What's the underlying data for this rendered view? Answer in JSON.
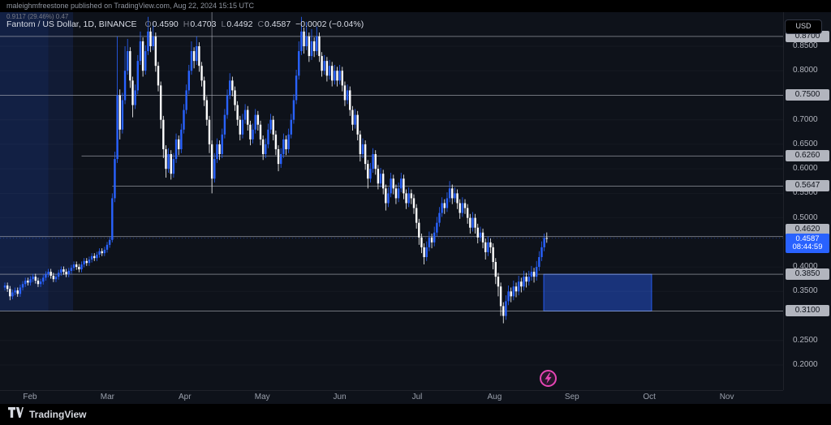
{
  "publish_bar": {
    "text": "maleighmfreestone published on TradingView.com, Aug 22, 2024 15:15 UTC"
  },
  "legend": {
    "symbol": "Fantom / US Dollar, 1D, BINANCE",
    "drawing_label": "0.9117 (29.46%) 0.47",
    "ohlc": {
      "o_label": "O",
      "o": "0.4590",
      "h_label": "H",
      "h": "0.4703",
      "l_label": "L",
      "l": "0.4492",
      "c_label": "C",
      "c": "0.4587",
      "change": "−0.0002 (−0.04%)"
    }
  },
  "price_axis": {
    "currency_button": "USD",
    "ticks": [
      {
        "label": "0.8500",
        "price": 0.85
      },
      {
        "label": "0.8000",
        "price": 0.8
      },
      {
        "label": "0.7000",
        "price": 0.7
      },
      {
        "label": "0.6500",
        "price": 0.65
      },
      {
        "label": "0.6000",
        "price": 0.6
      },
      {
        "label": "0.5500",
        "price": 0.55
      },
      {
        "label": "0.5000",
        "price": 0.5
      },
      {
        "label": "0.4000",
        "price": 0.4
      },
      {
        "label": "0.3500",
        "price": 0.35
      },
      {
        "label": "0.2500",
        "price": 0.25
      },
      {
        "label": "0.2000",
        "price": 0.2
      }
    ],
    "current": {
      "price_label": "0.4587",
      "countdown": "08:44:59",
      "price": 0.4587
    }
  },
  "time_axis": {
    "months": [
      "Feb",
      "Mar",
      "Apr",
      "May",
      "Jun",
      "Jul",
      "Aug",
      "Sep",
      "Oct",
      "Nov"
    ]
  },
  "footer": {
    "brand": "TradingView"
  },
  "colors": {
    "up": "#2962ff",
    "down": "#ffffff",
    "accent_blue": "#2962ff",
    "badge_bg": "#b2b5be",
    "pink": "#e645b4",
    "background": "#0e121a"
  },
  "chart_data": {
    "type": "candlestick",
    "title": "Fantom / US Dollar, 1D, BINANCE",
    "pair": "FTM/USD",
    "interval": "1D",
    "exchange": "BINANCE",
    "visible_price_range": [
      0.17,
      0.925
    ],
    "up_color": "#2962ff",
    "down_color": "#ffffff",
    "level_color": "rgba(178,181,190,0.6)",
    "levels": [
      {
        "label": "0.8700",
        "price": 0.87
      },
      {
        "label": "0.7500",
        "price": 0.75
      },
      {
        "label": "0.6260",
        "price": 0.626,
        "from_index": 30
      },
      {
        "label": "0.5647",
        "price": 0.5647,
        "from_index": 42
      },
      {
        "label": "0.4620",
        "price": 0.462
      },
      {
        "label": "0.3850",
        "price": 0.385
      },
      {
        "label": "0.3100",
        "price": 0.31
      }
    ],
    "vertical_line": {
      "index": 81,
      "price_bottom": 0.5647
    },
    "zones": [
      {
        "name": "left-highlight",
        "from_index": -2,
        "to_index": 26.7,
        "price_top": 0.92,
        "price_bottom": 0.31,
        "fill": "rgba(41,98,255,0.12)"
      },
      {
        "name": "left-highlight-inner",
        "from_index": -2,
        "to_index": 17,
        "price_top": 0.92,
        "price_bottom": 0.31,
        "fill": "rgba(41,98,255,0.08)"
      },
      {
        "name": "demand-zone",
        "from_index": 210.8,
        "to_index": 253,
        "price_top": 0.385,
        "price_bottom": 0.31,
        "fill": "rgba(41,98,255,0.42)",
        "stroke": "rgba(41,98,255,0.9)"
      }
    ],
    "candles": [
      [
        0.358,
        0.368,
        0.352,
        0.362
      ],
      [
        0.362,
        0.368,
        0.349,
        0.355
      ],
      [
        0.355,
        0.361,
        0.332,
        0.34
      ],
      [
        0.34,
        0.354,
        0.334,
        0.348
      ],
      [
        0.348,
        0.358,
        0.342,
        0.352
      ],
      [
        0.352,
        0.358,
        0.339,
        0.345
      ],
      [
        0.345,
        0.364,
        0.339,
        0.358
      ],
      [
        0.358,
        0.371,
        0.352,
        0.365
      ],
      [
        0.365,
        0.378,
        0.359,
        0.372
      ],
      [
        0.372,
        0.378,
        0.362,
        0.368
      ],
      [
        0.368,
        0.381,
        0.362,
        0.375
      ],
      [
        0.375,
        0.386,
        0.369,
        0.38
      ],
      [
        0.38,
        0.386,
        0.366,
        0.372
      ],
      [
        0.372,
        0.378,
        0.359,
        0.365
      ],
      [
        0.365,
        0.376,
        0.359,
        0.37
      ],
      [
        0.37,
        0.384,
        0.364,
        0.378
      ],
      [
        0.378,
        0.391,
        0.372,
        0.385
      ],
      [
        0.385,
        0.396,
        0.379,
        0.39
      ],
      [
        0.39,
        0.396,
        0.376,
        0.382
      ],
      [
        0.382,
        0.388,
        0.369,
        0.375
      ],
      [
        0.375,
        0.386,
        0.369,
        0.38
      ],
      [
        0.38,
        0.394,
        0.374,
        0.388
      ],
      [
        0.388,
        0.401,
        0.382,
        0.395
      ],
      [
        0.395,
        0.401,
        0.384,
        0.39
      ],
      [
        0.39,
        0.396,
        0.379,
        0.385
      ],
      [
        0.385,
        0.398,
        0.379,
        0.392
      ],
      [
        0.392,
        0.404,
        0.386,
        0.398
      ],
      [
        0.398,
        0.411,
        0.392,
        0.405
      ],
      [
        0.405,
        0.411,
        0.394,
        0.4
      ],
      [
        0.4,
        0.406,
        0.389,
        0.395
      ],
      [
        0.395,
        0.411,
        0.389,
        0.405
      ],
      [
        0.405,
        0.418,
        0.399,
        0.412
      ],
      [
        0.412,
        0.418,
        0.402,
        0.408
      ],
      [
        0.408,
        0.421,
        0.402,
        0.415
      ],
      [
        0.415,
        0.428,
        0.409,
        0.422
      ],
      [
        0.422,
        0.428,
        0.412,
        0.418
      ],
      [
        0.418,
        0.431,
        0.412,
        0.425
      ],
      [
        0.425,
        0.438,
        0.419,
        0.432
      ],
      [
        0.432,
        0.438,
        0.422,
        0.428
      ],
      [
        0.428,
        0.441,
        0.422,
        0.435
      ],
      [
        0.435,
        0.451,
        0.429,
        0.445
      ],
      [
        0.445,
        0.461,
        0.439,
        0.455
      ],
      [
        0.455,
        0.55,
        0.45,
        0.54
      ],
      [
        0.54,
        0.635,
        0.532,
        0.62
      ],
      [
        0.62,
        0.87,
        0.612,
        0.75
      ],
      [
        0.75,
        0.762,
        0.66,
        0.68
      ],
      [
        0.68,
        0.755,
        0.672,
        0.74
      ],
      [
        0.74,
        0.85,
        0.732,
        0.8
      ],
      [
        0.8,
        0.865,
        0.792,
        0.84
      ],
      [
        0.84,
        0.848,
        0.765,
        0.78
      ],
      [
        0.78,
        0.788,
        0.705,
        0.73
      ],
      [
        0.73,
        0.772,
        0.722,
        0.76
      ],
      [
        0.76,
        0.832,
        0.752,
        0.82
      ],
      [
        0.82,
        0.88,
        0.812,
        0.86
      ],
      [
        0.86,
        0.868,
        0.788,
        0.8
      ],
      [
        0.8,
        0.852,
        0.792,
        0.84
      ],
      [
        0.84,
        0.91,
        0.832,
        0.88
      ],
      [
        0.88,
        0.888,
        0.838,
        0.85
      ],
      [
        0.85,
        0.9,
        0.842,
        0.87
      ],
      [
        0.87,
        0.878,
        0.798,
        0.81
      ],
      [
        0.81,
        0.818,
        0.758,
        0.77
      ],
      [
        0.77,
        0.778,
        0.682,
        0.7
      ],
      [
        0.7,
        0.708,
        0.622,
        0.64
      ],
      [
        0.64,
        0.648,
        0.582,
        0.6
      ],
      [
        0.6,
        0.642,
        0.592,
        0.63
      ],
      [
        0.63,
        0.638,
        0.578,
        0.59
      ],
      [
        0.59,
        0.632,
        0.582,
        0.62
      ],
      [
        0.62,
        0.672,
        0.612,
        0.66
      ],
      [
        0.66,
        0.668,
        0.628,
        0.64
      ],
      [
        0.64,
        0.692,
        0.632,
        0.68
      ],
      [
        0.68,
        0.732,
        0.672,
        0.72
      ],
      [
        0.72,
        0.772,
        0.712,
        0.76
      ],
      [
        0.76,
        0.812,
        0.752,
        0.8
      ],
      [
        0.8,
        0.86,
        0.792,
        0.84
      ],
      [
        0.84,
        0.848,
        0.805,
        0.82
      ],
      [
        0.82,
        0.87,
        0.812,
        0.85
      ],
      [
        0.85,
        0.858,
        0.798,
        0.81
      ],
      [
        0.81,
        0.818,
        0.768,
        0.78
      ],
      [
        0.78,
        0.788,
        0.728,
        0.74
      ],
      [
        0.74,
        0.748,
        0.688,
        0.7
      ],
      [
        0.7,
        0.708,
        0.632,
        0.65
      ],
      [
        0.65,
        0.658,
        0.55,
        0.58
      ],
      [
        0.58,
        0.632,
        0.572,
        0.62
      ],
      [
        0.62,
        0.662,
        0.612,
        0.65
      ],
      [
        0.65,
        0.658,
        0.618,
        0.63
      ],
      [
        0.63,
        0.682,
        0.622,
        0.67
      ],
      [
        0.67,
        0.722,
        0.662,
        0.71
      ],
      [
        0.71,
        0.762,
        0.702,
        0.75
      ],
      [
        0.75,
        0.795,
        0.742,
        0.78
      ],
      [
        0.78,
        0.788,
        0.748,
        0.76
      ],
      [
        0.76,
        0.768,
        0.718,
        0.73
      ],
      [
        0.73,
        0.738,
        0.688,
        0.7
      ],
      [
        0.7,
        0.708,
        0.658,
        0.67
      ],
      [
        0.67,
        0.712,
        0.662,
        0.7
      ],
      [
        0.7,
        0.732,
        0.692,
        0.72
      ],
      [
        0.72,
        0.728,
        0.678,
        0.69
      ],
      [
        0.69,
        0.698,
        0.648,
        0.66
      ],
      [
        0.66,
        0.692,
        0.652,
        0.68
      ],
      [
        0.68,
        0.722,
        0.672,
        0.71
      ],
      [
        0.71,
        0.718,
        0.678,
        0.69
      ],
      [
        0.69,
        0.698,
        0.648,
        0.66
      ],
      [
        0.66,
        0.668,
        0.618,
        0.63
      ],
      [
        0.63,
        0.662,
        0.622,
        0.65
      ],
      [
        0.65,
        0.692,
        0.642,
        0.68
      ],
      [
        0.68,
        0.712,
        0.672,
        0.7
      ],
      [
        0.7,
        0.708,
        0.658,
        0.67
      ],
      [
        0.67,
        0.678,
        0.628,
        0.64
      ],
      [
        0.64,
        0.648,
        0.595,
        0.61
      ],
      [
        0.61,
        0.642,
        0.602,
        0.63
      ],
      [
        0.63,
        0.672,
        0.622,
        0.66
      ],
      [
        0.66,
        0.668,
        0.628,
        0.64
      ],
      [
        0.64,
        0.682,
        0.632,
        0.67
      ],
      [
        0.67,
        0.712,
        0.662,
        0.7
      ],
      [
        0.7,
        0.752,
        0.692,
        0.74
      ],
      [
        0.74,
        0.802,
        0.732,
        0.79
      ],
      [
        0.79,
        0.86,
        0.782,
        0.84
      ],
      [
        0.84,
        0.91,
        0.832,
        0.88
      ],
      [
        0.88,
        0.888,
        0.835,
        0.85
      ],
      [
        0.85,
        0.9,
        0.842,
        0.87
      ],
      [
        0.87,
        0.878,
        0.818,
        0.83
      ],
      [
        0.83,
        0.885,
        0.822,
        0.86
      ],
      [
        0.86,
        0.868,
        0.828,
        0.84
      ],
      [
        0.84,
        0.89,
        0.832,
        0.87
      ],
      [
        0.87,
        0.878,
        0.818,
        0.83
      ],
      [
        0.83,
        0.838,
        0.788,
        0.8
      ],
      [
        0.8,
        0.832,
        0.792,
        0.82
      ],
      [
        0.82,
        0.828,
        0.778,
        0.79
      ],
      [
        0.79,
        0.822,
        0.782,
        0.81
      ],
      [
        0.81,
        0.818,
        0.768,
        0.78
      ],
      [
        0.78,
        0.812,
        0.772,
        0.8
      ],
      [
        0.8,
        0.808,
        0.768,
        0.78
      ],
      [
        0.78,
        0.812,
        0.772,
        0.8
      ],
      [
        0.8,
        0.808,
        0.758,
        0.77
      ],
      [
        0.77,
        0.778,
        0.728,
        0.74
      ],
      [
        0.74,
        0.772,
        0.732,
        0.76
      ],
      [
        0.76,
        0.768,
        0.708,
        0.72
      ],
      [
        0.72,
        0.728,
        0.678,
        0.69
      ],
      [
        0.69,
        0.722,
        0.682,
        0.71
      ],
      [
        0.71,
        0.718,
        0.658,
        0.67
      ],
      [
        0.67,
        0.678,
        0.615,
        0.63
      ],
      [
        0.63,
        0.662,
        0.622,
        0.65
      ],
      [
        0.65,
        0.658,
        0.598,
        0.61
      ],
      [
        0.61,
        0.618,
        0.56,
        0.58
      ],
      [
        0.58,
        0.612,
        0.572,
        0.6
      ],
      [
        0.6,
        0.642,
        0.592,
        0.63
      ],
      [
        0.63,
        0.638,
        0.588,
        0.6
      ],
      [
        0.6,
        0.608,
        0.558,
        0.57
      ],
      [
        0.57,
        0.602,
        0.562,
        0.59
      ],
      [
        0.59,
        0.598,
        0.548,
        0.56
      ],
      [
        0.56,
        0.568,
        0.515,
        0.53
      ],
      [
        0.53,
        0.562,
        0.522,
        0.55
      ],
      [
        0.55,
        0.592,
        0.542,
        0.58
      ],
      [
        0.58,
        0.588,
        0.548,
        0.56
      ],
      [
        0.56,
        0.568,
        0.528,
        0.54
      ],
      [
        0.54,
        0.572,
        0.532,
        0.56
      ],
      [
        0.56,
        0.592,
        0.552,
        0.58
      ],
      [
        0.58,
        0.588,
        0.538,
        0.55
      ],
      [
        0.55,
        0.558,
        0.518,
        0.53
      ],
      [
        0.53,
        0.562,
        0.522,
        0.55
      ],
      [
        0.55,
        0.558,
        0.528,
        0.54
      ],
      [
        0.54,
        0.548,
        0.508,
        0.52
      ],
      [
        0.52,
        0.528,
        0.478,
        0.49
      ],
      [
        0.49,
        0.498,
        0.445,
        0.46
      ],
      [
        0.46,
        0.468,
        0.428,
        0.44
      ],
      [
        0.44,
        0.448,
        0.405,
        0.42
      ],
      [
        0.42,
        0.452,
        0.412,
        0.44
      ],
      [
        0.44,
        0.472,
        0.432,
        0.46
      ],
      [
        0.46,
        0.468,
        0.438,
        0.45
      ],
      [
        0.45,
        0.482,
        0.442,
        0.47
      ],
      [
        0.47,
        0.502,
        0.462,
        0.49
      ],
      [
        0.49,
        0.522,
        0.482,
        0.51
      ],
      [
        0.51,
        0.542,
        0.502,
        0.53
      ],
      [
        0.53,
        0.538,
        0.508,
        0.52
      ],
      [
        0.52,
        0.552,
        0.512,
        0.54
      ],
      [
        0.54,
        0.575,
        0.532,
        0.56
      ],
      [
        0.56,
        0.568,
        0.528,
        0.54
      ],
      [
        0.54,
        0.562,
        0.532,
        0.55
      ],
      [
        0.55,
        0.558,
        0.518,
        0.53
      ],
      [
        0.53,
        0.538,
        0.498,
        0.51
      ],
      [
        0.51,
        0.542,
        0.502,
        0.53
      ],
      [
        0.53,
        0.538,
        0.508,
        0.52
      ],
      [
        0.52,
        0.528,
        0.488,
        0.5
      ],
      [
        0.5,
        0.508,
        0.468,
        0.48
      ],
      [
        0.48,
        0.512,
        0.472,
        0.5
      ],
      [
        0.5,
        0.508,
        0.468,
        0.48
      ],
      [
        0.48,
        0.488,
        0.448,
        0.46
      ],
      [
        0.46,
        0.482,
        0.452,
        0.47
      ],
      [
        0.47,
        0.478,
        0.438,
        0.45
      ],
      [
        0.45,
        0.458,
        0.415,
        0.43
      ],
      [
        0.43,
        0.462,
        0.422,
        0.45
      ],
      [
        0.45,
        0.458,
        0.428,
        0.44
      ],
      [
        0.44,
        0.448,
        0.395,
        0.41
      ],
      [
        0.41,
        0.418,
        0.365,
        0.38
      ],
      [
        0.38,
        0.388,
        0.34,
        0.36
      ],
      [
        0.36,
        0.368,
        0.3,
        0.32
      ],
      [
        0.32,
        0.328,
        0.285,
        0.3
      ],
      [
        0.3,
        0.342,
        0.292,
        0.33
      ],
      [
        0.33,
        0.362,
        0.322,
        0.35
      ],
      [
        0.35,
        0.358,
        0.328,
        0.34
      ],
      [
        0.34,
        0.372,
        0.332,
        0.36
      ],
      [
        0.36,
        0.368,
        0.338,
        0.35
      ],
      [
        0.35,
        0.382,
        0.342,
        0.37
      ],
      [
        0.37,
        0.378,
        0.348,
        0.36
      ],
      [
        0.36,
        0.392,
        0.352,
        0.38
      ],
      [
        0.38,
        0.388,
        0.358,
        0.37
      ],
      [
        0.37,
        0.392,
        0.362,
        0.38
      ],
      [
        0.38,
        0.402,
        0.372,
        0.39
      ],
      [
        0.39,
        0.398,
        0.368,
        0.38
      ],
      [
        0.38,
        0.412,
        0.372,
        0.4
      ],
      [
        0.4,
        0.432,
        0.392,
        0.42
      ],
      [
        0.42,
        0.452,
        0.412,
        0.44
      ],
      [
        0.44,
        0.468,
        0.432,
        0.459
      ],
      [
        0.459,
        0.4703,
        0.4492,
        0.4587
      ]
    ]
  }
}
